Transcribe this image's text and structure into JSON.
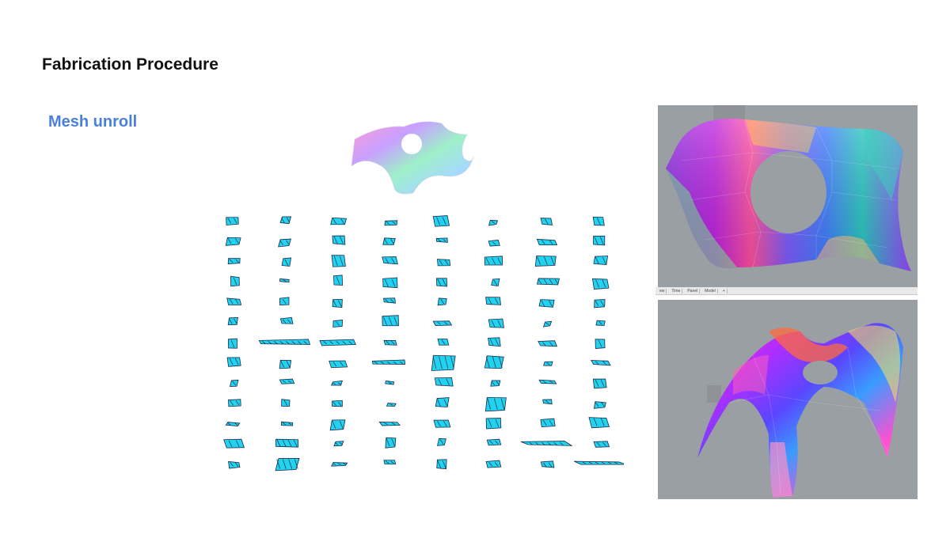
{
  "slide": {
    "title": "Fabrication Procedure",
    "subtitle": "Mesh unroll",
    "subtitle_color": "#4a7fdb"
  },
  "unroll": {
    "piece_color": "#22d3f0",
    "line_color": "#1b2a4a",
    "columns": 8,
    "rows": 13
  },
  "viewports": {
    "background": "#9a9fa3",
    "tabs": [
      "ew",
      "Time",
      "Panel",
      "Model",
      "+"
    ]
  }
}
